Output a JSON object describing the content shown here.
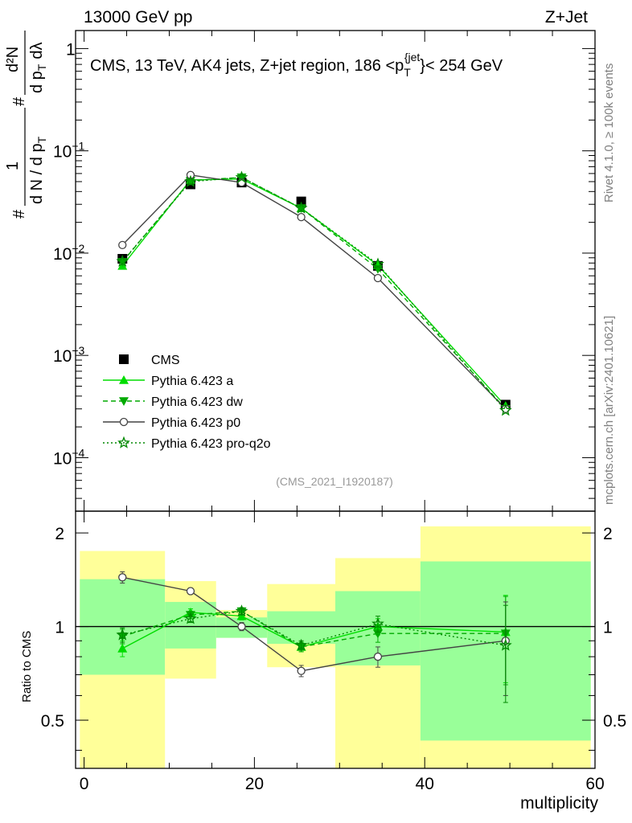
{
  "header": {
    "left": "13000 GeV pp",
    "right": "Z+Jet"
  },
  "side_labels": {
    "rivet": "Rivet 4.1.0, ≥ 100k events",
    "mcplots": "mcplots.cern.ch [arXiv:2401.10621]"
  },
  "chart_data": {
    "type": "line",
    "title": "CMS, 13 TeV, AK4 jets, Z+jet region, 186 <p_T^{jet}< 254 GeV",
    "title_main": "CMS, 13 TeV, AK4 jets, Z+jet region, 186 <p",
    "title_sub": "T",
    "title_sup": "{jet",
    "title_tail": "}< 254 GeV",
    "watermark": "(CMS_2021_I1920187)",
    "ylabel_parts": {
      "one": "1",
      "hash": "#",
      "dN": "d N / d p",
      "T": "T",
      "d2N": "d²N",
      "dpT": "d p",
      "dlambda": "dλ"
    },
    "xlabel": "multiplicity",
    "ratio_ylabel": "Ratio to CMS",
    "xlim": [
      -1,
      60
    ],
    "ylim": [
      3e-05,
      1.5
    ],
    "ylog": true,
    "ratio_ylim": [
      0.35,
      2.35
    ],
    "x_ticks": [
      "0",
      "20",
      "40",
      "60"
    ],
    "x_tick_values": [
      0,
      20,
      40,
      60
    ],
    "y_ticks": [
      {
        "value": 1,
        "base": "1",
        "exp": ""
      },
      {
        "value": 0.1,
        "base": "10",
        "exp": "−1"
      },
      {
        "value": 0.01,
        "base": "10",
        "exp": "−2"
      },
      {
        "value": 0.001,
        "base": "10",
        "exp": "−3"
      },
      {
        "value": 0.0001,
        "base": "10",
        "exp": "−4"
      }
    ],
    "ratio_ticks": [
      {
        "value": 2,
        "label": "2"
      },
      {
        "value": 1,
        "label": "1"
      },
      {
        "value": 0.5,
        "label": "0.5"
      }
    ],
    "bins": [
      {
        "lo": -0.5,
        "hi": 9.5,
        "center": 4.5
      },
      {
        "lo": 9.5,
        "hi": 15.5,
        "center": 12.5
      },
      {
        "lo": 15.5,
        "hi": 21.5,
        "center": 18.5
      },
      {
        "lo": 21.5,
        "hi": 29.5,
        "center": 25.5
      },
      {
        "lo": 29.5,
        "hi": 39.5,
        "center": 34.5
      },
      {
        "lo": 39.5,
        "hi": 59.5,
        "center": 49.5
      }
    ],
    "data": {
      "name": "CMS",
      "values": [
        0.0088,
        0.047,
        0.049,
        0.032,
        0.0075,
        0.00033
      ],
      "band_inner": [
        [
          0.7,
          1.42
        ],
        [
          0.85,
          1.2
        ],
        [
          0.92,
          1.07
        ],
        [
          0.88,
          1.12
        ],
        [
          0.75,
          1.3
        ],
        [
          0.43,
          1.62
        ]
      ],
      "band_outer": [
        [
          0.3,
          1.75
        ],
        [
          0.68,
          1.4
        ],
        [
          0.92,
          1.13
        ],
        [
          0.74,
          1.37
        ],
        [
          0.3,
          1.66
        ],
        [
          0.3,
          2.1
        ]
      ]
    },
    "series": [
      {
        "name": "Pythia 6.423 a",
        "color": "#00dd00",
        "dash": "",
        "marker": "triangle-up",
        "values": [
          0.0075,
          0.052,
          0.053,
          0.0275,
          0.0076,
          0.00032
        ],
        "ratio": [
          0.85,
          1.11,
          1.08,
          0.86,
          1.0,
          0.96
        ],
        "ratio_err": [
          0.05,
          0.03,
          0.03,
          0.03,
          0.06,
          0.3
        ]
      },
      {
        "name": "Pythia 6.423 dw",
        "color": "#00aa00",
        "dash": "6,4",
        "marker": "triangle-down",
        "values": [
          0.0082,
          0.051,
          0.055,
          0.0275,
          0.007,
          0.0003
        ],
        "ratio": [
          0.93,
          1.09,
          1.12,
          0.86,
          0.95,
          0.95
        ],
        "ratio_err": [
          0.05,
          0.03,
          0.03,
          0.03,
          0.06,
          0.3
        ]
      },
      {
        "name": "Pythia 6.423 p0",
        "color": "#444444",
        "dash": "",
        "marker": "circle-open",
        "values": [
          0.012,
          0.058,
          0.049,
          0.0225,
          0.0057,
          0.0003
        ],
        "ratio": [
          1.44,
          1.3,
          1.0,
          0.72,
          0.8,
          0.9
        ],
        "ratio_err": [
          0.06,
          0.03,
          0.03,
          0.03,
          0.06,
          0.3
        ]
      },
      {
        "name": "Pythia 6.423 pro-q2o",
        "color": "#008800",
        "dash": "2,3",
        "marker": "star",
        "values": [
          0.0083,
          0.05,
          0.055,
          0.0275,
          0.0078,
          0.00029
        ],
        "ratio": [
          0.94,
          1.06,
          1.12,
          0.87,
          1.02,
          0.87
        ],
        "ratio_err": [
          0.05,
          0.03,
          0.03,
          0.03,
          0.06,
          0.3
        ]
      }
    ]
  }
}
